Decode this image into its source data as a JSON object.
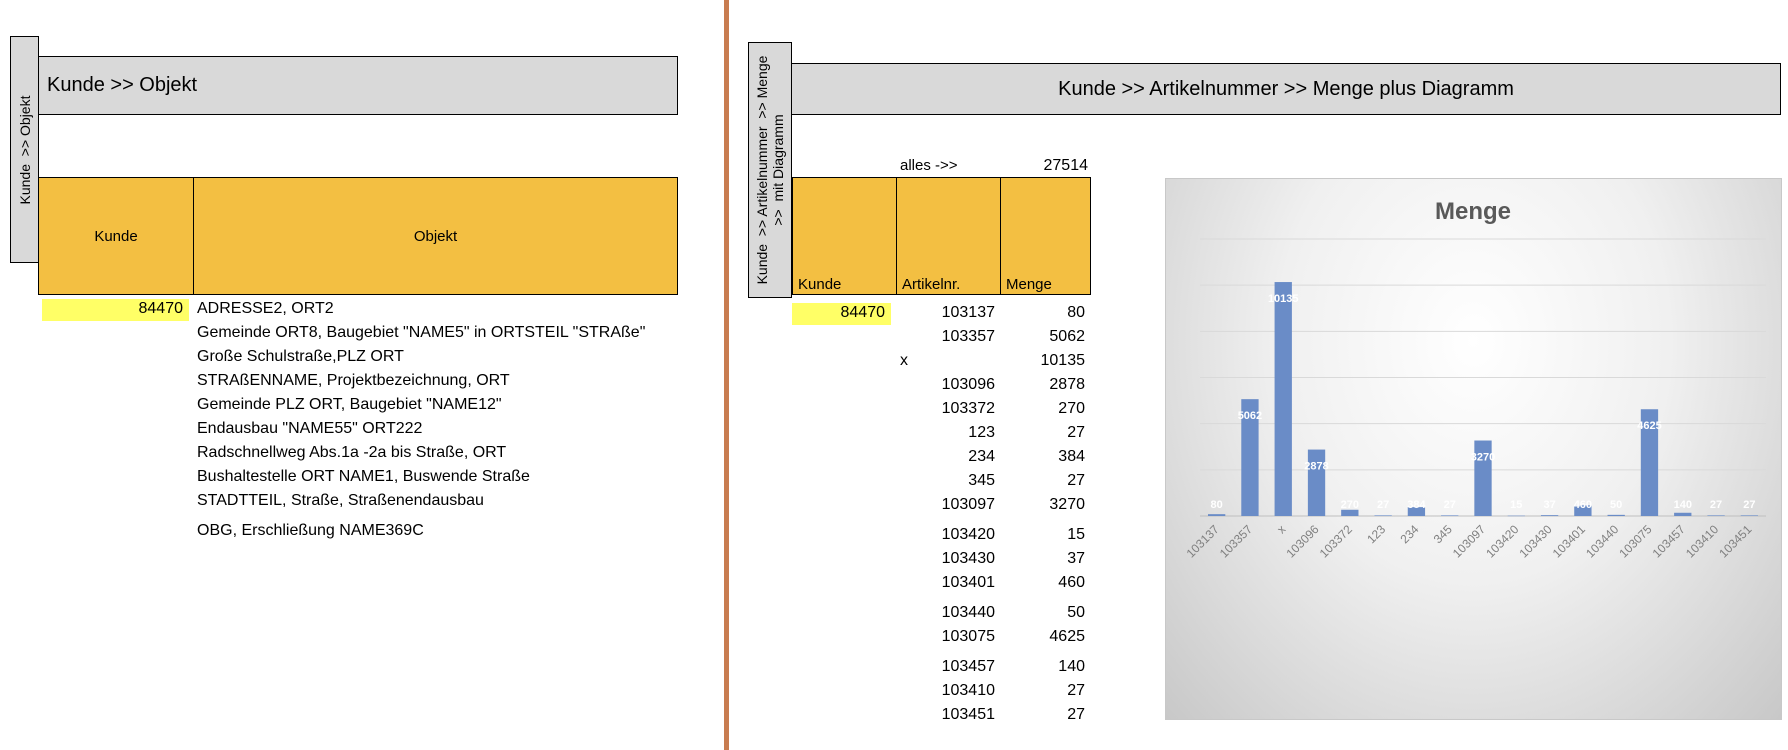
{
  "left": {
    "vertical_label": "Kunde  >> Objekt",
    "title": "Kunde  >> Objekt",
    "col_kunde": "Kunde",
    "col_objekt": "Objekt",
    "kunde_value": "84470",
    "objekte": [
      "ADRESSE2, ORT2",
      "Gemeinde ORT8, Baugebiet \"NAME5\" in ORTSTEIL \"STRAße\"",
      "Große Schulstraße,PLZ ORT",
      "STRAßENNAME, Projektbezeichnung, ORT",
      "Gemeinde PLZ ORT, Baugebiet \"NAME12\"",
      "Endausbau \"NAME55\" ORT222",
      "Radschnellweg Abs.1a -2a bis Straße, ORT",
      "Bushaltestelle ORT NAME1, Buswende Straße",
      "STADTTEIL, Straße, Straßenendausbau",
      "OBG, Erschließung NAME369C"
    ]
  },
  "right": {
    "vertical_label": "Kunde  >> Artikelnummer  >> Menge\n>>  mit Diagramm",
    "title": "Kunde  >> Artikelnummer  >> Menge    plus Diagramm",
    "alles_label": "alles ->>",
    "alles_value": "27514",
    "col_kunde": "Kunde",
    "col_artikel": "Artikelnr.",
    "col_menge": "Menge",
    "kunde_value": "84470",
    "rows": [
      {
        "artikel": "103137",
        "menge": "80"
      },
      {
        "artikel": "103357",
        "menge": "5062"
      },
      {
        "artikel": "x",
        "menge": "10135"
      },
      {
        "artikel": "103096",
        "menge": "2878"
      },
      {
        "artikel": "103372",
        "menge": "270"
      },
      {
        "artikel": "123",
        "menge": "27"
      },
      {
        "artikel": "234",
        "menge": "384"
      },
      {
        "artikel": "345",
        "menge": "27"
      },
      {
        "artikel": "103097",
        "menge": "3270"
      },
      {
        "artikel": "103420",
        "menge": "15"
      },
      {
        "artikel": "103430",
        "menge": "37"
      },
      {
        "artikel": "103401",
        "menge": "460"
      },
      {
        "artikel": "103440",
        "menge": "50"
      },
      {
        "artikel": "103075",
        "menge": "4625"
      },
      {
        "artikel": "103457",
        "menge": "140"
      },
      {
        "artikel": "103410",
        "menge": "27"
      },
      {
        "artikel": "103451",
        "menge": "27"
      }
    ]
  },
  "chart_data": {
    "type": "bar",
    "title": "Menge",
    "categories": [
      "103137",
      "103357",
      "x",
      "103096",
      "103372",
      "123",
      "234",
      "345",
      "103097",
      "103420",
      "103430",
      "103401",
      "103440",
      "103075",
      "103457",
      "103410",
      "103451"
    ],
    "values": [
      80,
      5062,
      10135,
      2878,
      270,
      27,
      384,
      27,
      3270,
      15,
      37,
      460,
      50,
      4625,
      140,
      27,
      27
    ],
    "ylim": [
      0,
      12000
    ],
    "grid": true,
    "bar_color": "#6a8cc7",
    "label_color": "#ffffff",
    "tick_color": "#7f7f7f"
  }
}
